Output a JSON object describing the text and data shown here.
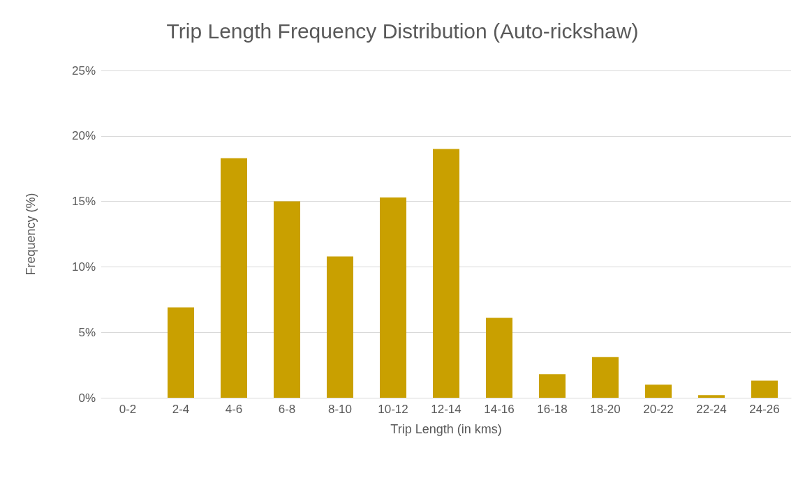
{
  "chart_data": {
    "type": "bar",
    "title": "Trip Length Frequency Distribution (Auto-rickshaw)",
    "xlabel": "Trip Length (in kms)",
    "ylabel": "Frequency (%)",
    "categories": [
      "0-2",
      "2-4",
      "4-6",
      "6-8",
      "8-10",
      "10-12",
      "12-14",
      "14-16",
      "16-18",
      "18-20",
      "20-22",
      "22-24",
      "24-26"
    ],
    "values": [
      0,
      6.9,
      18.3,
      15.0,
      10.8,
      15.3,
      19.0,
      6.1,
      1.8,
      3.1,
      1.0,
      0.2,
      1.3
    ],
    "color": "#c9a000",
    "ylim": [
      0,
      25
    ],
    "yticks": [
      {
        "value": 0,
        "label": "0%"
      },
      {
        "value": 5,
        "label": "5%"
      },
      {
        "value": 10,
        "label": "10%"
      },
      {
        "value": 15,
        "label": "15%"
      },
      {
        "value": 20,
        "label": "20%"
      },
      {
        "value": 25,
        "label": "25%"
      }
    ],
    "grid": "y"
  }
}
